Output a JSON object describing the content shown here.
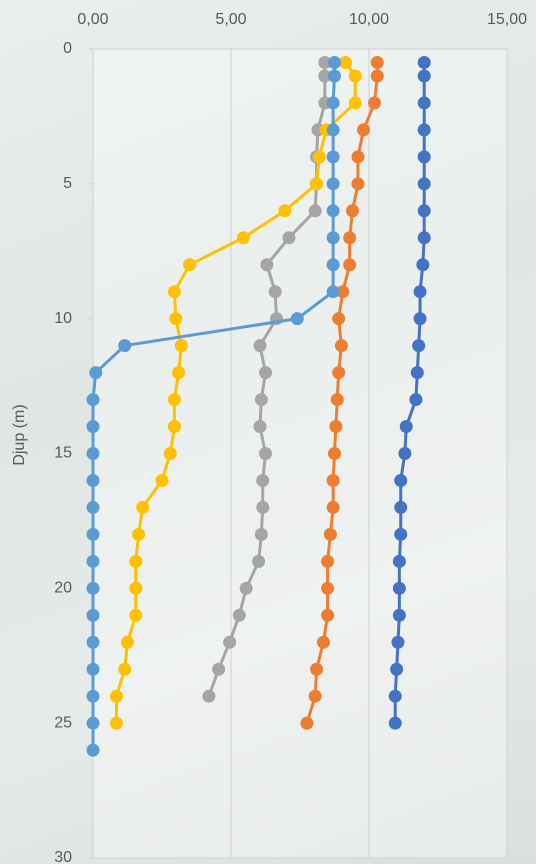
{
  "chart_data": {
    "type": "line",
    "orientation": "depth-profile",
    "y_axis_label": "Djup (m)",
    "depths": [
      0.5,
      1,
      2,
      3,
      4,
      5,
      6,
      7,
      8,
      9,
      10,
      11,
      12,
      13,
      14,
      15,
      16,
      17,
      18,
      19,
      20,
      21,
      22,
      23,
      24,
      25,
      26
    ],
    "xlim": [
      0,
      15
    ],
    "xticks": [
      {
        "value": 0,
        "label": "0,00"
      },
      {
        "value": 5,
        "label": "5,00"
      },
      {
        "value": 10,
        "label": "10,00"
      },
      {
        "value": 15,
        "label": "15,00"
      }
    ],
    "ylim": [
      0,
      30
    ],
    "yticks": [
      0,
      5,
      10,
      15,
      20,
      25,
      30
    ],
    "y_inverted": true,
    "grid": true,
    "series": [
      {
        "color": "#4472c4",
        "values": [
          12.0,
          12.0,
          12.0,
          12.0,
          12.0,
          12.0,
          12.0,
          12.0,
          11.95,
          11.85,
          11.85,
          11.8,
          11.75,
          11.7,
          11.35,
          11.3,
          11.15,
          11.15,
          11.15,
          11.1,
          11.1,
          11.1,
          11.05,
          11.0,
          10.95,
          10.95,
          null
        ]
      },
      {
        "color": "#ed7d31",
        "values": [
          10.3,
          10.3,
          10.2,
          9.8,
          9.6,
          9.6,
          9.4,
          9.3,
          9.3,
          9.05,
          8.9,
          9.0,
          8.9,
          8.85,
          8.8,
          8.75,
          8.7,
          8.7,
          8.6,
          8.5,
          8.5,
          8.5,
          8.35,
          8.1,
          8.05,
          7.75,
          null
        ]
      },
      {
        "color": "#a5a5a5",
        "values": [
          8.4,
          8.4,
          8.4,
          8.15,
          8.1,
          8.1,
          8.05,
          7.1,
          6.3,
          6.6,
          6.65,
          6.05,
          6.25,
          6.1,
          6.05,
          6.25,
          6.15,
          6.15,
          6.1,
          6.0,
          5.55,
          5.3,
          4.95,
          4.55,
          4.2,
          null,
          null
        ]
      },
      {
        "color": "#ffc000",
        "values": [
          9.15,
          9.5,
          9.5,
          8.45,
          8.2,
          8.1,
          6.95,
          5.45,
          3.5,
          2.95,
          3.0,
          3.2,
          3.1,
          2.95,
          2.95,
          2.8,
          2.5,
          1.8,
          1.65,
          1.55,
          1.55,
          1.55,
          1.25,
          1.15,
          0.85,
          0.85,
          null
        ]
      },
      {
        "color": "#5b9bd5",
        "values": [
          8.75,
          8.75,
          8.7,
          8.7,
          8.7,
          8.7,
          8.7,
          8.7,
          8.7,
          8.7,
          7.4,
          1.15,
          0.1,
          0,
          0,
          0,
          0,
          0,
          0,
          0,
          0,
          0,
          0,
          0,
          0,
          0,
          0
        ]
      }
    ]
  }
}
